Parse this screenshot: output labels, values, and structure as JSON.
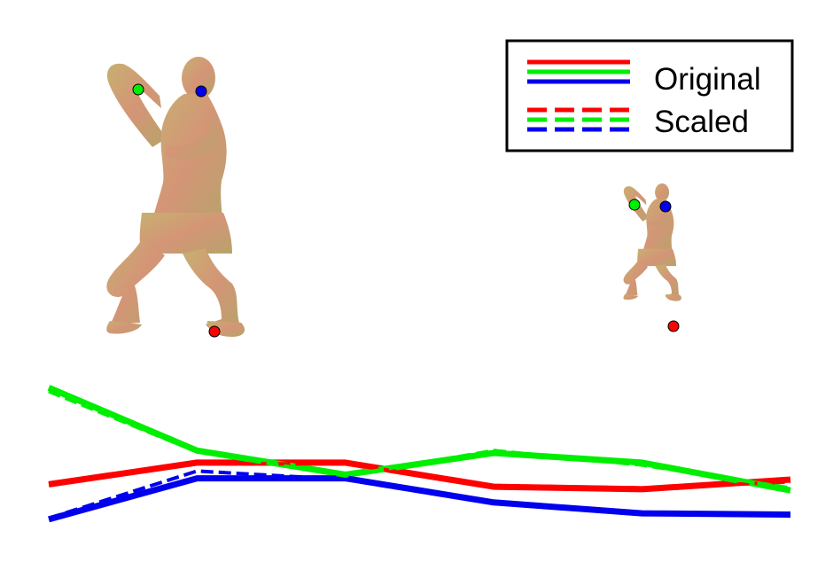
{
  "legend": {
    "entries": [
      {
        "label": "Original",
        "style": "solid"
      },
      {
        "label": "Scaled",
        "style": "dashed"
      }
    ]
  },
  "colors": {
    "red": "#ff0000",
    "green": "#00ee00",
    "blue": "#0000ee",
    "mesh": "#c99b6b"
  },
  "figures": [
    {
      "id": "figure-original",
      "scale": 1.0
    },
    {
      "id": "figure-scaled",
      "scale": 0.42
    }
  ],
  "keypoints": [
    "head",
    "hand",
    "foot"
  ],
  "chart_data": {
    "type": "line",
    "x": [
      1,
      2,
      3,
      4,
      5,
      6
    ],
    "series": [
      {
        "color": "red",
        "style": "solid",
        "values": [
          0.2,
          0.38,
          0.38,
          0.18,
          0.16,
          0.24
        ]
      },
      {
        "color": "red",
        "style": "dashed",
        "values": [
          0.2,
          0.37,
          0.37,
          0.19,
          0.17,
          0.22
        ]
      },
      {
        "color": "green",
        "style": "solid",
        "values": [
          1.0,
          0.48,
          0.28,
          0.46,
          0.38,
          0.15
        ]
      },
      {
        "color": "green",
        "style": "dashed",
        "values": [
          0.97,
          0.47,
          0.27,
          0.48,
          0.36,
          0.17
        ]
      },
      {
        "color": "blue",
        "style": "solid",
        "values": [
          -0.09,
          0.25,
          0.25,
          0.05,
          -0.04,
          -0.05
        ]
      },
      {
        "color": "blue",
        "style": "dashed",
        "values": [
          -0.08,
          0.31,
          0.24,
          0.04,
          -0.03,
          -0.06
        ]
      }
    ],
    "ylim": [
      -0.12,
      1.04
    ]
  }
}
